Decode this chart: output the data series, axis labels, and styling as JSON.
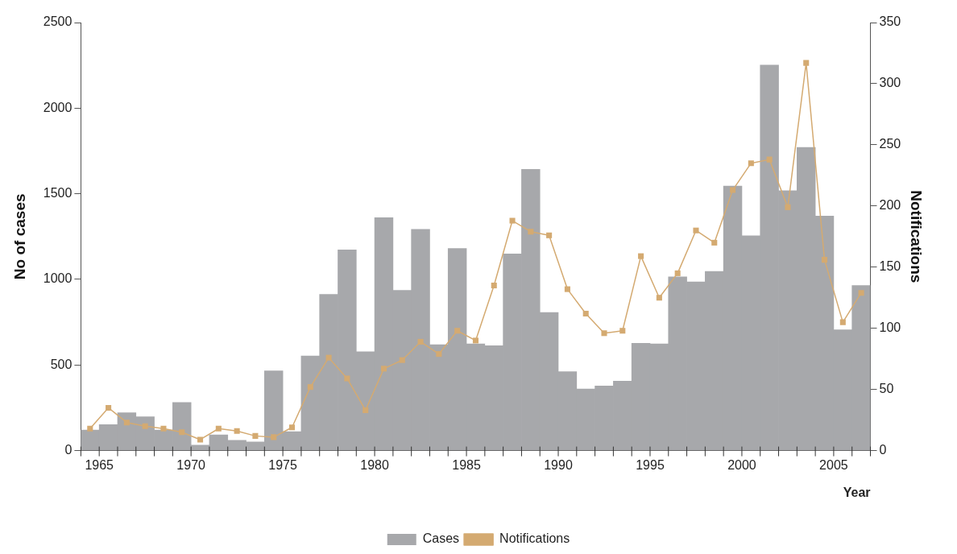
{
  "chart_data": {
    "type": "bar",
    "x": [
      1964.5,
      1965.5,
      1966.5,
      1967.5,
      1968.5,
      1969.5,
      1970.5,
      1971.5,
      1972.5,
      1973.5,
      1974.5,
      1975.5,
      1976.5,
      1977.5,
      1978.5,
      1979.5,
      1980.5,
      1981.5,
      1982.5,
      1983.5,
      1984.5,
      1985.5,
      1986.5,
      1987.5,
      1988.5,
      1989.5,
      1990.5,
      1991.5,
      1992.5,
      1993.5,
      1994.5,
      1995.5,
      1996.5,
      1997.5,
      1998.5,
      1999.5,
      2000.5,
      2001.5,
      2002.5,
      2003.5,
      2004.5,
      2005.5,
      2006.5
    ],
    "series": [
      {
        "name": "Cases",
        "color": "#a7a8ab",
        "values": [
          120,
          152,
          221,
          198,
          120,
          281,
          32,
          92,
          60,
          51,
          466,
          111,
          553,
          913,
          1172,
          577,
          1360,
          936,
          1292,
          618,
          1181,
          623,
          613,
          1149,
          1642,
          807,
          461,
          360,
          378,
          406,
          627,
          623,
          1015,
          985,
          1047,
          1545,
          1255,
          2251,
          1518,
          1771,
          1370,
          706,
          964
        ]
      },
      {
        "name": "Notifications",
        "type": "line",
        "axis": "y2",
        "color": "#d4aa71",
        "marker": "square",
        "values": [
          18,
          35,
          23,
          20,
          18,
          15,
          9,
          18,
          16,
          12,
          11,
          19,
          52,
          76,
          59,
          33,
          67,
          74,
          89,
          79,
          98,
          90,
          135,
          188,
          179,
          176,
          132,
          112,
          96,
          98,
          159,
          125,
          145,
          180,
          170,
          213,
          235,
          238,
          199,
          317,
          156,
          105,
          129
        ]
      }
    ],
    "xlim": [
      1964,
      2007
    ],
    "xticks": [
      {
        "value": 1964,
        "label": null
      },
      1965,
      {
        "value": 1966,
        "label": null
      },
      {
        "value": 1967,
        "label": null
      },
      {
        "value": 1968,
        "label": null
      },
      {
        "value": 1969,
        "label": null
      },
      1970,
      {
        "value": 1971,
        "label": null
      },
      {
        "value": 1972,
        "label": null
      },
      {
        "value": 1973,
        "label": null
      },
      {
        "value": 1974,
        "label": null
      },
      1975,
      {
        "value": 1976,
        "label": null
      },
      {
        "value": 1977,
        "label": null
      },
      {
        "value": 1978,
        "label": null
      },
      {
        "value": 1979,
        "label": null
      },
      1980,
      {
        "value": 1981,
        "label": null
      },
      {
        "value": 1982,
        "label": null
      },
      {
        "value": 1983,
        "label": null
      },
      {
        "value": 1984,
        "label": null
      },
      1985,
      {
        "value": 1986,
        "label": null
      },
      {
        "value": 1987,
        "label": null
      },
      {
        "value": 1988,
        "label": null
      },
      {
        "value": 1989,
        "label": null
      },
      1990,
      {
        "value": 1991,
        "label": null
      },
      {
        "value": 1992,
        "label": null
      },
      {
        "value": 1993,
        "label": null
      },
      {
        "value": 1994,
        "label": null
      },
      1995,
      {
        "value": 1996,
        "label": null
      },
      {
        "value": 1997,
        "label": null
      },
      {
        "value": 1998,
        "label": null
      },
      {
        "value": 1999,
        "label": null
      },
      2000,
      {
        "value": 2001,
        "label": null
      },
      {
        "value": 2002,
        "label": null
      },
      {
        "value": 2003,
        "label": null
      },
      {
        "value": 2004,
        "label": null
      },
      2005,
      {
        "value": 2006,
        "label": null
      },
      {
        "value": 2007,
        "label": null
      }
    ],
    "ylim": [
      0,
      2500
    ],
    "yticks": [
      0,
      500,
      1000,
      1500,
      2000,
      2500
    ],
    "y2lim": [
      0,
      350
    ],
    "y2ticks": [
      0,
      50,
      100,
      150,
      200,
      250,
      300,
      350
    ],
    "xlabel": "Year",
    "ylabel": "No of cases",
    "y2label": "Notifications",
    "grid": false,
    "legend": "bottom",
    "line_style": "solid"
  }
}
